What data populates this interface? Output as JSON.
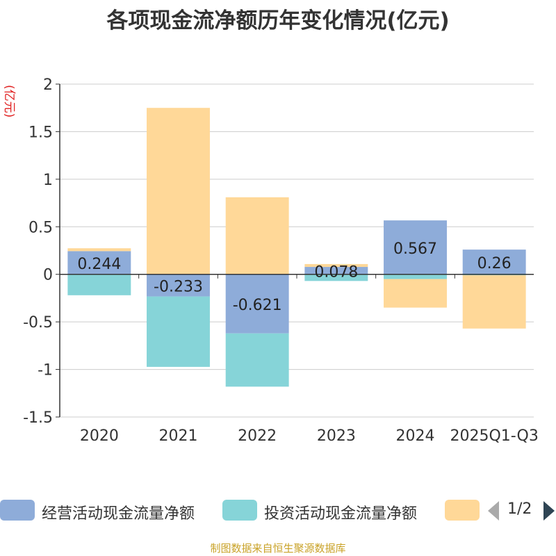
{
  "title": "各项现金流净额历年变化情况(亿元)",
  "unit": "(亿元)",
  "source": "制图数据来自恒生聚源数据库",
  "pager": "1/2",
  "legend": [
    {
      "name": "经营活动现金流量净额",
      "color": "#8eacd9"
    },
    {
      "name": "投资活动现金流量净额",
      "color": "#86d4d8"
    },
    {
      "name": "",
      "color": "#ffd898"
    }
  ],
  "chart_data": {
    "type": "bar",
    "stacked": true,
    "title": "各项现金流净额历年变化情况(亿元)",
    "ylabel": "(亿元)",
    "ylim": [
      -1.5,
      2
    ],
    "yticks": [
      2,
      1.5,
      1,
      0.5,
      0,
      -0.5,
      -1,
      -1.5
    ],
    "ytick_labels": [
      "2",
      "1.5",
      "1",
      "0.5",
      "0",
      "-0.5",
      "-1",
      "-1.5"
    ],
    "categories": [
      "2020",
      "2021",
      "2022",
      "2023",
      "2024",
      "2025Q1-Q3"
    ],
    "series": [
      {
        "name": "经营活动现金流量净额",
        "color": "#8eacd9",
        "values": [
          0.244,
          -0.233,
          -0.621,
          0.078,
          0.567,
          0.26
        ],
        "labels": [
          "0.244",
          "-0.233",
          "-0.621",
          "0.078",
          "0.567",
          "0.26"
        ]
      },
      {
        "name": "投资活动现金流量净额",
        "color": "#86d4d8",
        "values": [
          -0.22,
          -0.74,
          -0.56,
          -0.07,
          -0.05,
          -0.01
        ]
      },
      {
        "name": "",
        "color": "#ffd898",
        "values": [
          0.03,
          1.75,
          0.81,
          0.03,
          -0.3,
          -0.56
        ]
      }
    ],
    "grid": true
  }
}
